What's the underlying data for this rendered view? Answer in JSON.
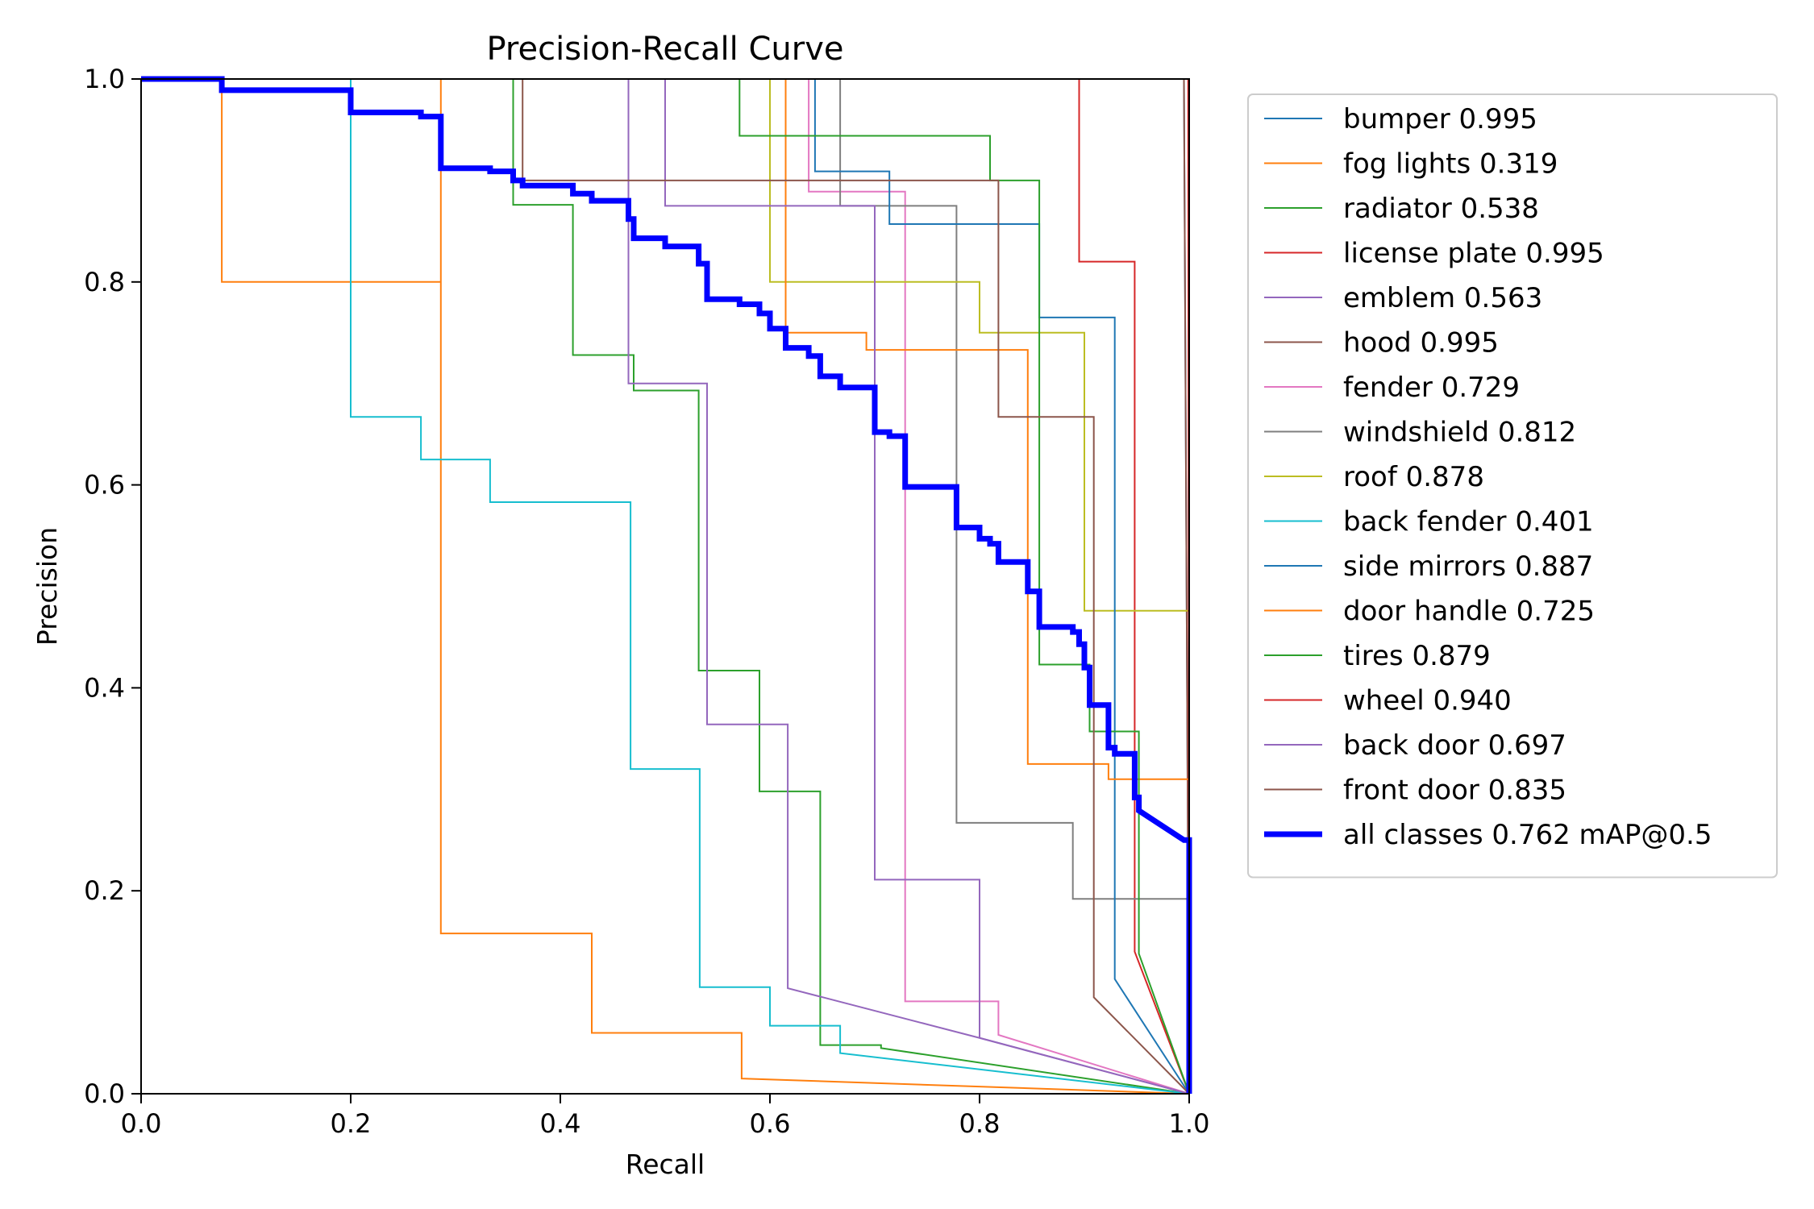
{
  "chart_data": {
    "type": "line",
    "title": "Precision-Recall Curve",
    "xlabel": "Recall",
    "ylabel": "Precision",
    "xlim": [
      0,
      1
    ],
    "ylim": [
      0,
      1
    ],
    "xticks": [
      "0.0",
      "0.2",
      "0.4",
      "0.6",
      "0.8",
      "1.0"
    ],
    "yticks": [
      "0.0",
      "0.2",
      "0.4",
      "0.6",
      "0.8",
      "1.0"
    ],
    "grid": false,
    "legend_position": "outside-right",
    "series": [
      {
        "label": "bumper 0.995",
        "color": "#1f77b4",
        "width": 2,
        "points": [
          [
            0,
            1
          ],
          [
            0.995,
            1
          ],
          [
            1,
            0
          ]
        ]
      },
      {
        "label": "fog lights 0.319",
        "color": "#ff7f0e",
        "width": 2,
        "points": [
          [
            0,
            1
          ],
          [
            0.077,
            1
          ],
          [
            0.077,
            0.8
          ],
          [
            0.286,
            0.8
          ],
          [
            0.286,
            1
          ],
          [
            0.286,
            0.158
          ],
          [
            0.43,
            0.158
          ],
          [
            0.43,
            0.06
          ],
          [
            0.573,
            0.06
          ],
          [
            0.573,
            0.015
          ],
          [
            1,
            0
          ]
        ]
      },
      {
        "label": "radiator 0.538",
        "color": "#2ca02c",
        "width": 2,
        "points": [
          [
            0,
            1
          ],
          [
            0.355,
            1
          ],
          [
            0.355,
            0.876
          ],
          [
            0.412,
            0.876
          ],
          [
            0.412,
            0.728
          ],
          [
            0.47,
            0.728
          ],
          [
            0.47,
            0.693
          ],
          [
            0.532,
            0.693
          ],
          [
            0.532,
            0.417
          ],
          [
            0.59,
            0.417
          ],
          [
            0.59,
            0.298
          ],
          [
            0.648,
            0.298
          ],
          [
            0.648,
            0.048
          ],
          [
            0.706,
            0.048
          ],
          [
            0.706,
            0.045
          ],
          [
            1,
            0
          ]
        ]
      },
      {
        "label": "license plate 0.995",
        "color": "#d62728",
        "width": 2,
        "points": [
          [
            0,
            1
          ],
          [
            0.895,
            1
          ],
          [
            0.895,
            0.82
          ],
          [
            0.948,
            0.82
          ],
          [
            0.948,
            0.14
          ],
          [
            1,
            0
          ]
        ]
      },
      {
        "label": "emblem 0.563",
        "color": "#9467bd",
        "width": 2,
        "points": [
          [
            0,
            1
          ],
          [
            0.465,
            1
          ],
          [
            0.465,
            0.7
          ],
          [
            0.54,
            0.7
          ],
          [
            0.54,
            0.364
          ],
          [
            0.617,
            0.364
          ],
          [
            0.617,
            0.104
          ],
          [
            0.8,
            0.055
          ],
          [
            1,
            0
          ]
        ]
      },
      {
        "label": "hood 0.995",
        "color": "#8c564b",
        "width": 2,
        "points": [
          [
            0,
            1
          ],
          [
            0.995,
            1
          ],
          [
            1,
            0
          ]
        ]
      },
      {
        "label": "fender 0.729",
        "color": "#e377c2",
        "width": 2,
        "points": [
          [
            0,
            1
          ],
          [
            0.637,
            1
          ],
          [
            0.637,
            0.889
          ],
          [
            0.729,
            0.889
          ],
          [
            0.729,
            0.091
          ],
          [
            0.818,
            0.091
          ],
          [
            0.818,
            0.058
          ],
          [
            1,
            0
          ]
        ]
      },
      {
        "label": "windshield 0.812",
        "color": "#7f7f7f",
        "width": 2,
        "points": [
          [
            0,
            1
          ],
          [
            0.667,
            1
          ],
          [
            0.667,
            0.875
          ],
          [
            0.778,
            0.875
          ],
          [
            0.778,
            0.267
          ],
          [
            0.889,
            0.267
          ],
          [
            0.889,
            0.192
          ],
          [
            1,
            0.192
          ],
          [
            1,
            0
          ]
        ]
      },
      {
        "label": "roof 0.878",
        "color": "#bcbd22",
        "width": 2,
        "points": [
          [
            0,
            1
          ],
          [
            0.6,
            1
          ],
          [
            0.6,
            0.8
          ],
          [
            0.8,
            0.8
          ],
          [
            0.8,
            0.75
          ],
          [
            0.9,
            0.75
          ],
          [
            0.9,
            0.476
          ],
          [
            1,
            0.476
          ],
          [
            1,
            0
          ]
        ]
      },
      {
        "label": "back fender 0.401",
        "color": "#17becf",
        "width": 2,
        "points": [
          [
            0,
            1
          ],
          [
            0.2,
            1
          ],
          [
            0.2,
            0.667
          ],
          [
            0.267,
            0.667
          ],
          [
            0.267,
            0.625
          ],
          [
            0.333,
            0.625
          ],
          [
            0.333,
            0.583
          ],
          [
            0.467,
            0.583
          ],
          [
            0.467,
            0.32
          ],
          [
            0.533,
            0.32
          ],
          [
            0.533,
            0.105
          ],
          [
            0.6,
            0.105
          ],
          [
            0.6,
            0.067
          ],
          [
            0.667,
            0.067
          ],
          [
            0.667,
            0.04
          ],
          [
            1,
            0
          ]
        ]
      },
      {
        "label": "side mirrors 0.887",
        "color": "#1f77b4",
        "width": 2,
        "points": [
          [
            0,
            1
          ],
          [
            0.643,
            1
          ],
          [
            0.643,
            0.909
          ],
          [
            0.714,
            0.909
          ],
          [
            0.714,
            0.857
          ],
          [
            0.857,
            0.857
          ],
          [
            0.857,
            0.765
          ],
          [
            0.929,
            0.765
          ],
          [
            0.929,
            0.113
          ],
          [
            1,
            0
          ]
        ]
      },
      {
        "label": "door handle 0.725",
        "color": "#ff7f0e",
        "width": 2,
        "points": [
          [
            0,
            1
          ],
          [
            0.615,
            1
          ],
          [
            0.615,
            0.75
          ],
          [
            0.692,
            0.75
          ],
          [
            0.692,
            0.733
          ],
          [
            0.846,
            0.733
          ],
          [
            0.846,
            0.325
          ],
          [
            0.923,
            0.325
          ],
          [
            0.923,
            0.31
          ],
          [
            1,
            0.31
          ],
          [
            1,
            0
          ]
        ]
      },
      {
        "label": "tires 0.879",
        "color": "#2ca02c",
        "width": 2,
        "points": [
          [
            0,
            1
          ],
          [
            0.571,
            1
          ],
          [
            0.571,
            0.944
          ],
          [
            0.81,
            0.944
          ],
          [
            0.81,
            0.9
          ],
          [
            0.857,
            0.9
          ],
          [
            0.857,
            0.423
          ],
          [
            0.905,
            0.423
          ],
          [
            0.905,
            0.357
          ],
          [
            0.952,
            0.357
          ],
          [
            0.952,
            0.138
          ],
          [
            1,
            0
          ]
        ]
      },
      {
        "label": "wheel 0.940",
        "color": "#d62728",
        "width": 2,
        "points": [
          [
            0,
            1
          ],
          [
            0.999,
            1
          ],
          [
            1,
            0
          ]
        ]
      },
      {
        "label": "back door 0.697",
        "color": "#9467bd",
        "width": 2,
        "points": [
          [
            0,
            1
          ],
          [
            0.5,
            1
          ],
          [
            0.5,
            0.875
          ],
          [
            0.7,
            0.875
          ],
          [
            0.7,
            0.211
          ],
          [
            0.8,
            0.211
          ],
          [
            0.8,
            0.055
          ],
          [
            1,
            0
          ]
        ]
      },
      {
        "label": "front door 0.835",
        "color": "#8c564b",
        "width": 2,
        "points": [
          [
            0,
            1
          ],
          [
            0.364,
            1
          ],
          [
            0.364,
            0.9
          ],
          [
            0.818,
            0.9
          ],
          [
            0.818,
            0.667
          ],
          [
            0.909,
            0.667
          ],
          [
            0.909,
            0.095
          ],
          [
            1,
            0
          ]
        ]
      },
      {
        "label": "all classes 0.762 mAP@0.5",
        "color": "#0000ff",
        "width": 7,
        "points": [
          [
            0,
            1
          ],
          [
            0.077,
            1
          ],
          [
            0.077,
            0.989
          ],
          [
            0.2,
            0.989
          ],
          [
            0.2,
            0.967
          ],
          [
            0.267,
            0.967
          ],
          [
            0.267,
            0.963
          ],
          [
            0.286,
            0.963
          ],
          [
            0.286,
            0.912
          ],
          [
            0.333,
            0.912
          ],
          [
            0.333,
            0.909
          ],
          [
            0.355,
            0.909
          ],
          [
            0.355,
            0.9
          ],
          [
            0.364,
            0.9
          ],
          [
            0.364,
            0.895
          ],
          [
            0.412,
            0.895
          ],
          [
            0.412,
            0.887
          ],
          [
            0.43,
            0.887
          ],
          [
            0.43,
            0.88
          ],
          [
            0.465,
            0.88
          ],
          [
            0.465,
            0.862
          ],
          [
            0.47,
            0.862
          ],
          [
            0.47,
            0.843
          ],
          [
            0.5,
            0.843
          ],
          [
            0.5,
            0.835
          ],
          [
            0.532,
            0.835
          ],
          [
            0.532,
            0.818
          ],
          [
            0.54,
            0.818
          ],
          [
            0.54,
            0.783
          ],
          [
            0.571,
            0.783
          ],
          [
            0.571,
            0.778
          ],
          [
            0.59,
            0.778
          ],
          [
            0.59,
            0.769
          ],
          [
            0.6,
            0.769
          ],
          [
            0.6,
            0.754
          ],
          [
            0.615,
            0.754
          ],
          [
            0.615,
            0.735
          ],
          [
            0.637,
            0.735
          ],
          [
            0.637,
            0.727
          ],
          [
            0.648,
            0.727
          ],
          [
            0.648,
            0.707
          ],
          [
            0.667,
            0.707
          ],
          [
            0.667,
            0.696
          ],
          [
            0.7,
            0.696
          ],
          [
            0.7,
            0.652
          ],
          [
            0.714,
            0.652
          ],
          [
            0.714,
            0.648
          ],
          [
            0.729,
            0.648
          ],
          [
            0.729,
            0.598
          ],
          [
            0.778,
            0.598
          ],
          [
            0.778,
            0.596
          ],
          [
            0.778,
            0.558
          ],
          [
            0.8,
            0.558
          ],
          [
            0.8,
            0.547
          ],
          [
            0.81,
            0.547
          ],
          [
            0.81,
            0.542
          ],
          [
            0.818,
            0.542
          ],
          [
            0.818,
            0.524
          ],
          [
            0.846,
            0.524
          ],
          [
            0.846,
            0.495
          ],
          [
            0.857,
            0.495
          ],
          [
            0.857,
            0.46
          ],
          [
            0.889,
            0.46
          ],
          [
            0.889,
            0.455
          ],
          [
            0.895,
            0.455
          ],
          [
            0.895,
            0.443
          ],
          [
            0.9,
            0.443
          ],
          [
            0.9,
            0.42
          ],
          [
            0.905,
            0.42
          ],
          [
            0.905,
            0.383
          ],
          [
            0.923,
            0.383
          ],
          [
            0.923,
            0.341
          ],
          [
            0.929,
            0.341
          ],
          [
            0.929,
            0.335
          ],
          [
            0.948,
            0.335
          ],
          [
            0.948,
            0.292
          ],
          [
            0.952,
            0.292
          ],
          [
            0.952,
            0.279
          ],
          [
            0.995,
            0.25
          ],
          [
            1,
            0.25
          ],
          [
            1,
            0
          ]
        ]
      }
    ]
  }
}
